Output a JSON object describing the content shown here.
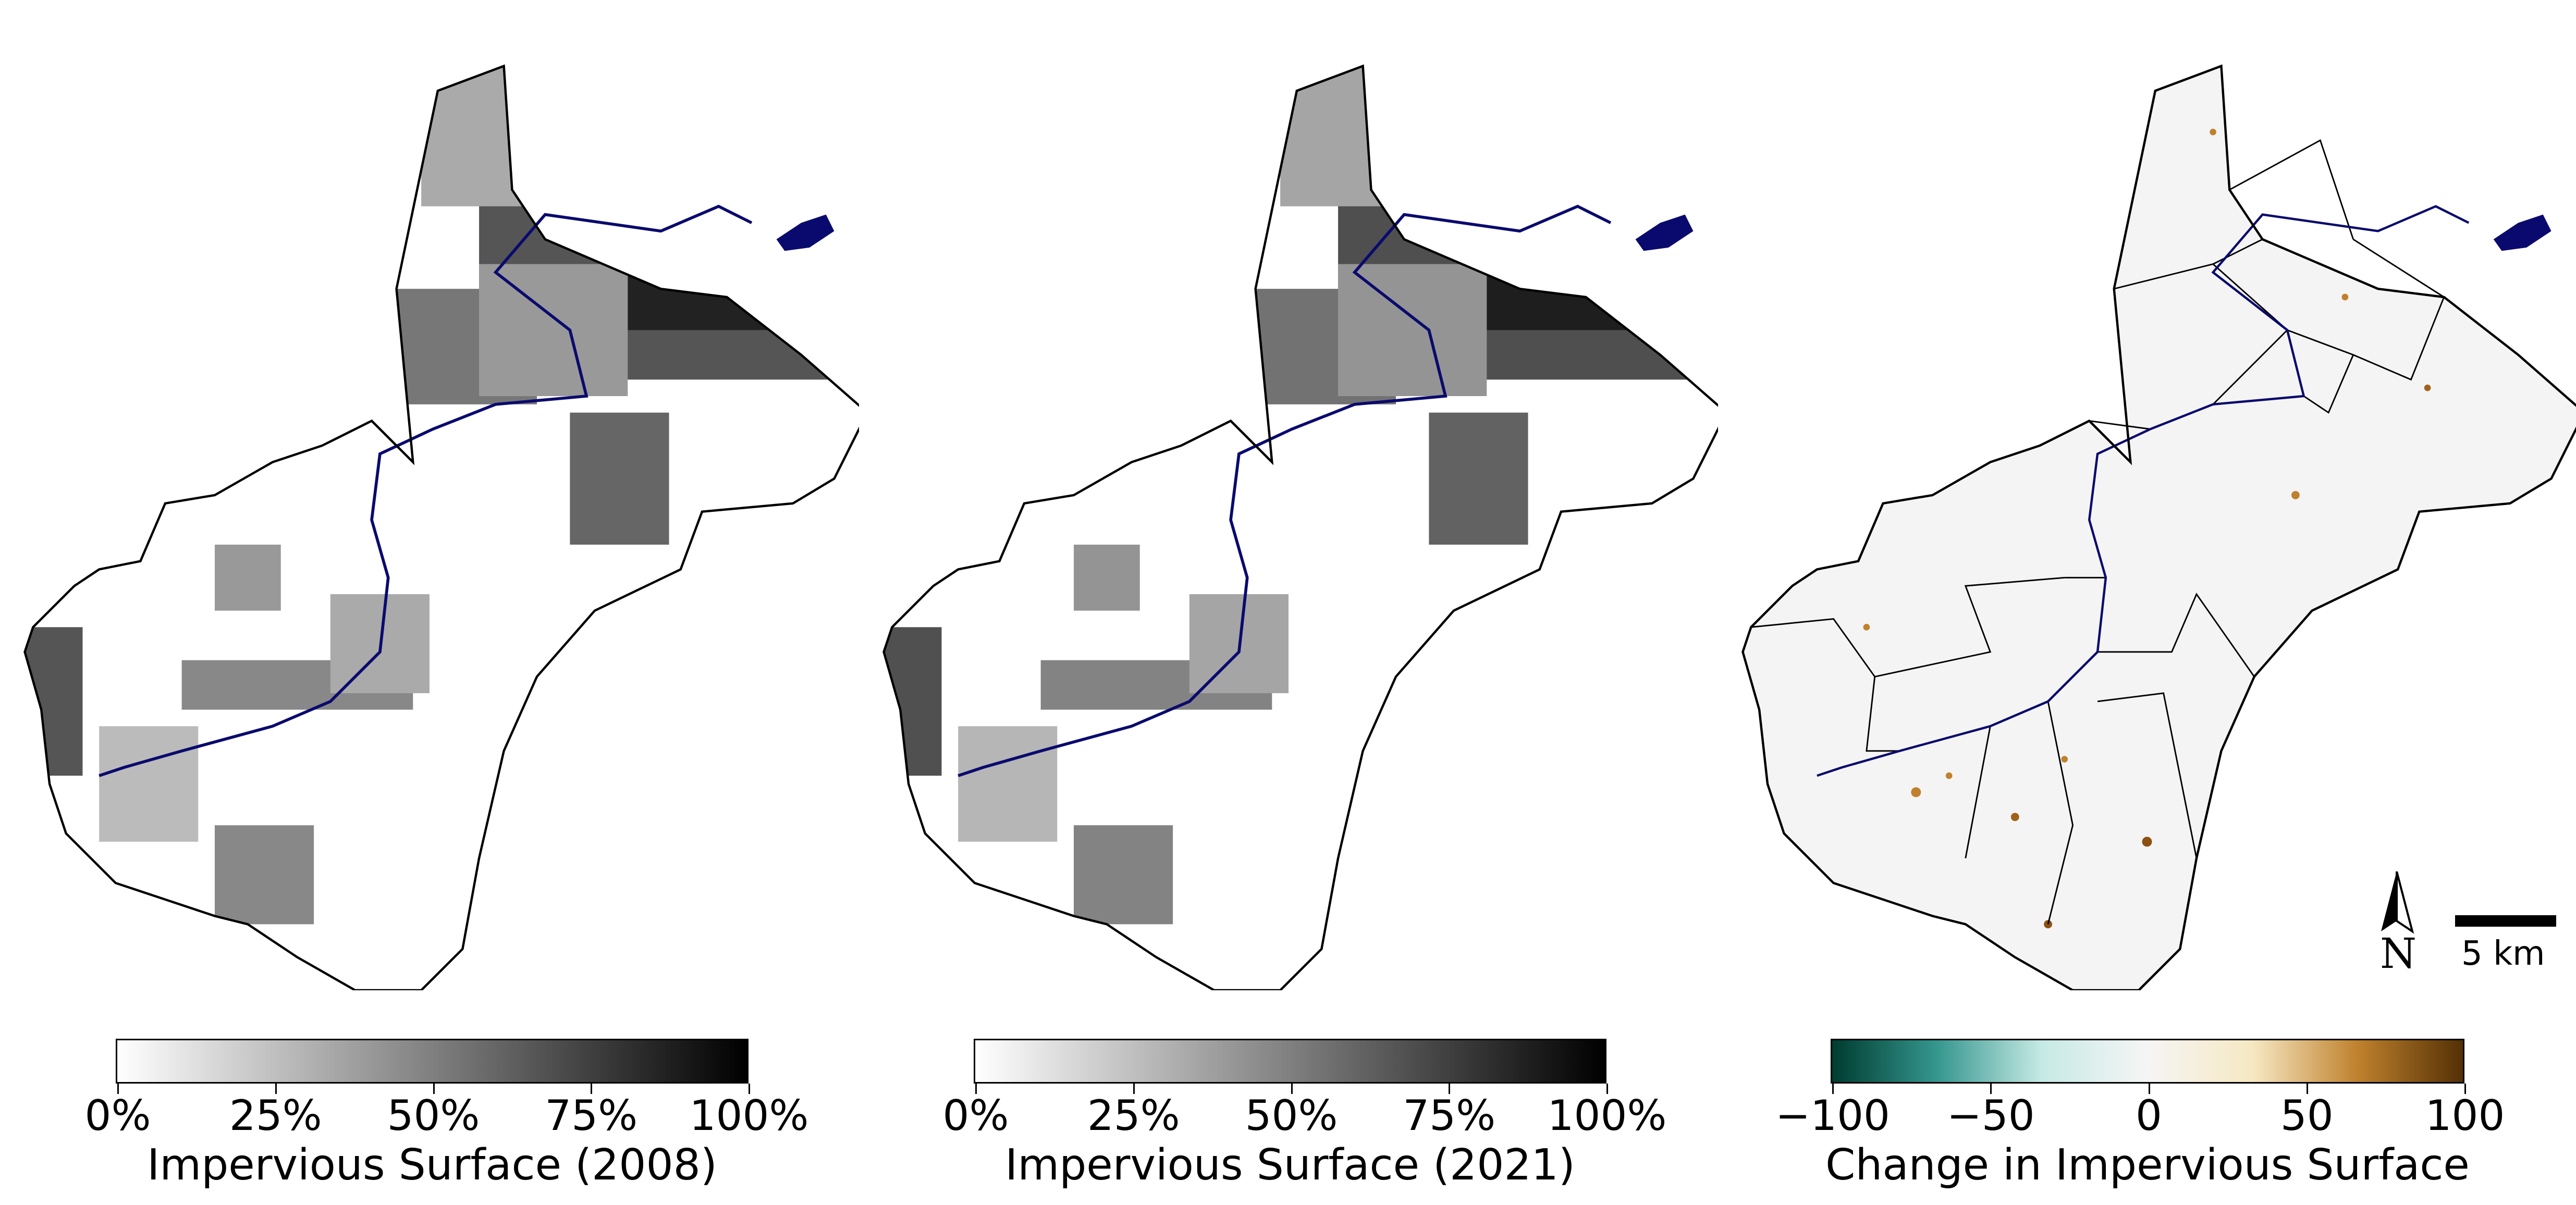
{
  "panels": [
    {
      "id": "impervious-2008",
      "colorbar": {
        "title": "Impervious Surface (2008)",
        "ticks": [
          "0%",
          "25%",
          "50%",
          "75%",
          "100%"
        ],
        "tick_values": [
          0,
          25,
          50,
          75,
          100
        ],
        "range": [
          0,
          100
        ],
        "colormap": [
          "#ffffff",
          "#000000"
        ]
      }
    },
    {
      "id": "impervious-2021",
      "colorbar": {
        "title": "Impervious Surface (2021)",
        "ticks": [
          "0%",
          "25%",
          "50%",
          "75%",
          "100%"
        ],
        "tick_values": [
          0,
          25,
          50,
          75,
          100
        ],
        "range": [
          0,
          100
        ],
        "colormap": [
          "#ffffff",
          "#000000"
        ]
      }
    },
    {
      "id": "impervious-change",
      "colorbar": {
        "title": "Change in Impervious Surface",
        "ticks": [
          "−100",
          "−50",
          "0",
          "50",
          "100"
        ],
        "tick_values": [
          -100,
          -50,
          0,
          50,
          100
        ],
        "range": [
          -100,
          100
        ],
        "colormap": [
          "#003c30",
          "#35978f",
          "#c7eae5",
          "#f5f5f5",
          "#f6e8c3",
          "#bf812d",
          "#543005"
        ]
      }
    }
  ],
  "north_arrow": {
    "label": "N"
  },
  "scale_bar": {
    "label": "5 km"
  },
  "colors": {
    "water": "#0a0a6e",
    "boundary": "#000000",
    "change_background": "#f4f4f4"
  }
}
